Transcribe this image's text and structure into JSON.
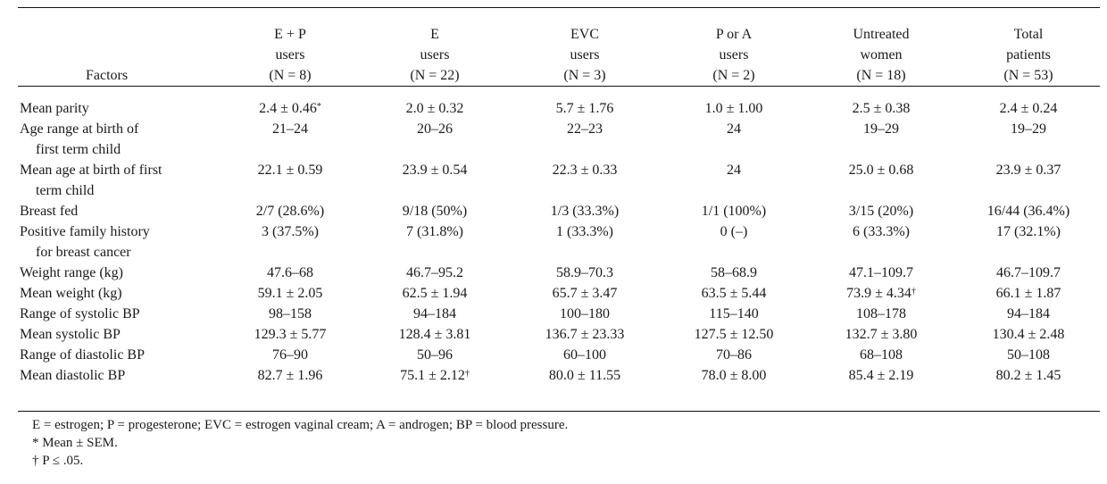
{
  "table": {
    "header": {
      "factors": "Factors",
      "columns": [
        {
          "line1": "E + P",
          "line2": "users",
          "n": "(N = 8)"
        },
        {
          "line1": "E",
          "line2": "users",
          "n": "(N = 22)"
        },
        {
          "line1": "EVC",
          "line2": "users",
          "n": "(N = 3)"
        },
        {
          "line1": "P or A",
          "line2": "users",
          "n": "(N = 2)"
        },
        {
          "line1": "Untreated",
          "line2": "women",
          "n": "(N = 18)"
        },
        {
          "line1": "Total",
          "line2": "patients",
          "n": "(N = 53)"
        }
      ]
    },
    "rows": [
      {
        "label": "Mean parity",
        "label2": "",
        "cells": [
          "2.4 ± 0.46",
          "2.0 ± 0.32",
          "5.7 ± 1.76",
          "1.0 ± 1.00",
          "2.5 ± 0.38",
          "2.4 ± 0.24"
        ],
        "marks": [
          "*",
          "",
          "",
          "",
          "",
          ""
        ]
      },
      {
        "label": "Age range at birth of",
        "label2": "first term child",
        "cells": [
          "21–24",
          "20–26",
          "22–23",
          "24",
          "19–29",
          "19–29"
        ],
        "marks": [
          "",
          "",
          "",
          "",
          "",
          ""
        ]
      },
      {
        "label": "Mean age at birth of first",
        "label2": "term child",
        "cells": [
          "22.1 ± 0.59",
          "23.9 ± 0.54",
          "22.3 ± 0.33",
          "24",
          "25.0 ± 0.68",
          "23.9 ± 0.37"
        ],
        "marks": [
          "",
          "",
          "",
          "",
          "",
          ""
        ]
      },
      {
        "label": "Breast fed",
        "label2": "",
        "cells": [
          "2/7 (28.6%)",
          "9/18 (50%)",
          "1/3 (33.3%)",
          "1/1 (100%)",
          "3/15 (20%)",
          "16/44 (36.4%)"
        ],
        "marks": [
          "",
          "",
          "",
          "",
          "",
          ""
        ]
      },
      {
        "label": "Positive family history",
        "label2": "for breast cancer",
        "cells": [
          "3 (37.5%)",
          "7 (31.8%)",
          "1 (33.3%)",
          "0 (–)",
          "6 (33.3%)",
          "17 (32.1%)"
        ],
        "marks": [
          "",
          "",
          "",
          "",
          "",
          ""
        ]
      },
      {
        "label": "Weight range (kg)",
        "label2": "",
        "cells": [
          "47.6–68",
          "46.7–95.2",
          "58.9–70.3",
          "58–68.9",
          "47.1–109.7",
          "46.7–109.7"
        ],
        "marks": [
          "",
          "",
          "",
          "",
          "",
          ""
        ]
      },
      {
        "label": "Mean weight (kg)",
        "label2": "",
        "cells": [
          "59.1 ± 2.05",
          "62.5 ± 1.94",
          "65.7 ± 3.47",
          "63.5 ± 5.44",
          "73.9 ± 4.34",
          "66.1 ± 1.87"
        ],
        "marks": [
          "",
          "",
          "",
          "",
          "†",
          ""
        ]
      },
      {
        "label": "Range of systolic BP",
        "label2": "",
        "cells": [
          "98–158",
          "94–184",
          "100–180",
          "115–140",
          "108–178",
          "94–184"
        ],
        "marks": [
          "",
          "",
          "",
          "",
          "",
          ""
        ]
      },
      {
        "label": "Mean systolic BP",
        "label2": "",
        "cells": [
          "129.3 ± 5.77",
          "128.4 ± 3.81",
          "136.7 ± 23.33",
          "127.5 ± 12.50",
          "132.7 ± 3.80",
          "130.4 ± 2.48"
        ],
        "marks": [
          "",
          "",
          "",
          "",
          "",
          ""
        ]
      },
      {
        "label": "Range of diastolic BP",
        "label2": "",
        "cells": [
          "76–90",
          "50–96",
          "60–100",
          "70–86",
          "68–108",
          "50–108"
        ],
        "marks": [
          "",
          "",
          "",
          "",
          "",
          ""
        ]
      },
      {
        "label": "Mean diastolic BP",
        "label2": "",
        "cells": [
          "82.7 ± 1.96",
          "75.1 ± 2.12",
          "80.0 ± 11.55",
          "78.0 ± 8.00",
          "85.4 ± 2.19",
          "80.2 ± 1.45"
        ],
        "marks": [
          "",
          "†",
          "",
          "",
          "",
          ""
        ]
      }
    ]
  },
  "notes": {
    "abbreviations": "E = estrogen; P = progesterone; EVC = estrogen vaginal cream; A = androgen; BP = blood pressure.",
    "footnote1": "* Mean ± SEM.",
    "footnote2": "† P ≤ .05."
  }
}
